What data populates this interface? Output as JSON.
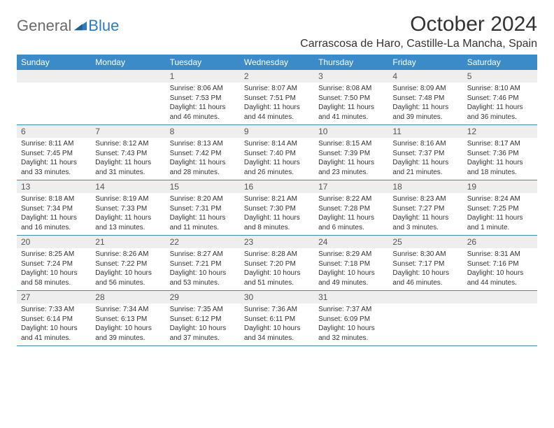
{
  "logo": {
    "part1": "General",
    "part2": "Blue"
  },
  "title": "October 2024",
  "location": "Carrascosa de Haro, Castille-La Mancha, Spain",
  "colors": {
    "header_bg": "#3b8bc9",
    "header_text": "#ffffff",
    "band_bg": "#eeeeee",
    "rule": "#3b8bc9",
    "body_text": "#333333",
    "logo_gray": "#6b6b6b",
    "logo_blue": "#2f7bbf"
  },
  "day_headers": [
    "Sunday",
    "Monday",
    "Tuesday",
    "Wednesday",
    "Thursday",
    "Friday",
    "Saturday"
  ],
  "weeks": [
    [
      {
        "n": "",
        "sunrise": "",
        "sunset": "",
        "daylight": ""
      },
      {
        "n": "",
        "sunrise": "",
        "sunset": "",
        "daylight": ""
      },
      {
        "n": "1",
        "sunrise": "Sunrise: 8:06 AM",
        "sunset": "Sunset: 7:53 PM",
        "daylight": "Daylight: 11 hours and 46 minutes."
      },
      {
        "n": "2",
        "sunrise": "Sunrise: 8:07 AM",
        "sunset": "Sunset: 7:51 PM",
        "daylight": "Daylight: 11 hours and 44 minutes."
      },
      {
        "n": "3",
        "sunrise": "Sunrise: 8:08 AM",
        "sunset": "Sunset: 7:50 PM",
        "daylight": "Daylight: 11 hours and 41 minutes."
      },
      {
        "n": "4",
        "sunrise": "Sunrise: 8:09 AM",
        "sunset": "Sunset: 7:48 PM",
        "daylight": "Daylight: 11 hours and 39 minutes."
      },
      {
        "n": "5",
        "sunrise": "Sunrise: 8:10 AM",
        "sunset": "Sunset: 7:46 PM",
        "daylight": "Daylight: 11 hours and 36 minutes."
      }
    ],
    [
      {
        "n": "6",
        "sunrise": "Sunrise: 8:11 AM",
        "sunset": "Sunset: 7:45 PM",
        "daylight": "Daylight: 11 hours and 33 minutes."
      },
      {
        "n": "7",
        "sunrise": "Sunrise: 8:12 AM",
        "sunset": "Sunset: 7:43 PM",
        "daylight": "Daylight: 11 hours and 31 minutes."
      },
      {
        "n": "8",
        "sunrise": "Sunrise: 8:13 AM",
        "sunset": "Sunset: 7:42 PM",
        "daylight": "Daylight: 11 hours and 28 minutes."
      },
      {
        "n": "9",
        "sunrise": "Sunrise: 8:14 AM",
        "sunset": "Sunset: 7:40 PM",
        "daylight": "Daylight: 11 hours and 26 minutes."
      },
      {
        "n": "10",
        "sunrise": "Sunrise: 8:15 AM",
        "sunset": "Sunset: 7:39 PM",
        "daylight": "Daylight: 11 hours and 23 minutes."
      },
      {
        "n": "11",
        "sunrise": "Sunrise: 8:16 AM",
        "sunset": "Sunset: 7:37 PM",
        "daylight": "Daylight: 11 hours and 21 minutes."
      },
      {
        "n": "12",
        "sunrise": "Sunrise: 8:17 AM",
        "sunset": "Sunset: 7:36 PM",
        "daylight": "Daylight: 11 hours and 18 minutes."
      }
    ],
    [
      {
        "n": "13",
        "sunrise": "Sunrise: 8:18 AM",
        "sunset": "Sunset: 7:34 PM",
        "daylight": "Daylight: 11 hours and 16 minutes."
      },
      {
        "n": "14",
        "sunrise": "Sunrise: 8:19 AM",
        "sunset": "Sunset: 7:33 PM",
        "daylight": "Daylight: 11 hours and 13 minutes."
      },
      {
        "n": "15",
        "sunrise": "Sunrise: 8:20 AM",
        "sunset": "Sunset: 7:31 PM",
        "daylight": "Daylight: 11 hours and 11 minutes."
      },
      {
        "n": "16",
        "sunrise": "Sunrise: 8:21 AM",
        "sunset": "Sunset: 7:30 PM",
        "daylight": "Daylight: 11 hours and 8 minutes."
      },
      {
        "n": "17",
        "sunrise": "Sunrise: 8:22 AM",
        "sunset": "Sunset: 7:28 PM",
        "daylight": "Daylight: 11 hours and 6 minutes."
      },
      {
        "n": "18",
        "sunrise": "Sunrise: 8:23 AM",
        "sunset": "Sunset: 7:27 PM",
        "daylight": "Daylight: 11 hours and 3 minutes."
      },
      {
        "n": "19",
        "sunrise": "Sunrise: 8:24 AM",
        "sunset": "Sunset: 7:25 PM",
        "daylight": "Daylight: 11 hours and 1 minute."
      }
    ],
    [
      {
        "n": "20",
        "sunrise": "Sunrise: 8:25 AM",
        "sunset": "Sunset: 7:24 PM",
        "daylight": "Daylight: 10 hours and 58 minutes."
      },
      {
        "n": "21",
        "sunrise": "Sunrise: 8:26 AM",
        "sunset": "Sunset: 7:22 PM",
        "daylight": "Daylight: 10 hours and 56 minutes."
      },
      {
        "n": "22",
        "sunrise": "Sunrise: 8:27 AM",
        "sunset": "Sunset: 7:21 PM",
        "daylight": "Daylight: 10 hours and 53 minutes."
      },
      {
        "n": "23",
        "sunrise": "Sunrise: 8:28 AM",
        "sunset": "Sunset: 7:20 PM",
        "daylight": "Daylight: 10 hours and 51 minutes."
      },
      {
        "n": "24",
        "sunrise": "Sunrise: 8:29 AM",
        "sunset": "Sunset: 7:18 PM",
        "daylight": "Daylight: 10 hours and 49 minutes."
      },
      {
        "n": "25",
        "sunrise": "Sunrise: 8:30 AM",
        "sunset": "Sunset: 7:17 PM",
        "daylight": "Daylight: 10 hours and 46 minutes."
      },
      {
        "n": "26",
        "sunrise": "Sunrise: 8:31 AM",
        "sunset": "Sunset: 7:16 PM",
        "daylight": "Daylight: 10 hours and 44 minutes."
      }
    ],
    [
      {
        "n": "27",
        "sunrise": "Sunrise: 7:33 AM",
        "sunset": "Sunset: 6:14 PM",
        "daylight": "Daylight: 10 hours and 41 minutes."
      },
      {
        "n": "28",
        "sunrise": "Sunrise: 7:34 AM",
        "sunset": "Sunset: 6:13 PM",
        "daylight": "Daylight: 10 hours and 39 minutes."
      },
      {
        "n": "29",
        "sunrise": "Sunrise: 7:35 AM",
        "sunset": "Sunset: 6:12 PM",
        "daylight": "Daylight: 10 hours and 37 minutes."
      },
      {
        "n": "30",
        "sunrise": "Sunrise: 7:36 AM",
        "sunset": "Sunset: 6:11 PM",
        "daylight": "Daylight: 10 hours and 34 minutes."
      },
      {
        "n": "31",
        "sunrise": "Sunrise: 7:37 AM",
        "sunset": "Sunset: 6:09 PM",
        "daylight": "Daylight: 10 hours and 32 minutes."
      },
      {
        "n": "",
        "sunrise": "",
        "sunset": "",
        "daylight": ""
      },
      {
        "n": "",
        "sunrise": "",
        "sunset": "",
        "daylight": ""
      }
    ]
  ]
}
